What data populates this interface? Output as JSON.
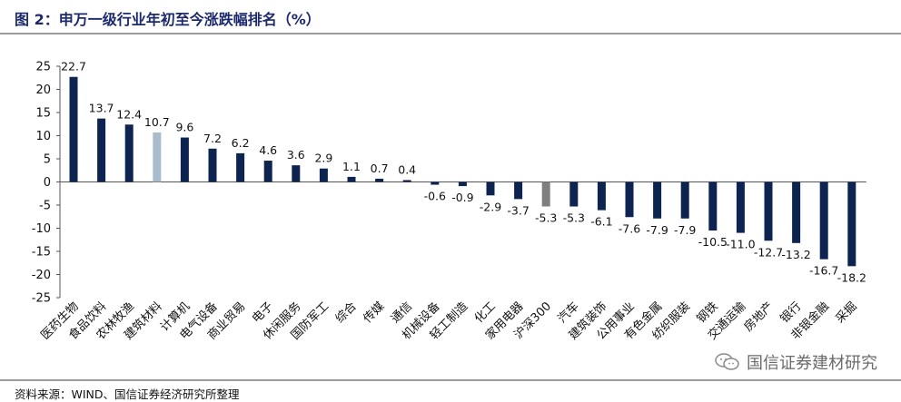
{
  "title": "图 2：申万一级行业年初至今涨跌幅排名（%）",
  "source": "资料来源：WIND、国信证券经济研究所整理",
  "watermark": "国信证券建材研究",
  "colors": {
    "bar": "#0d2451",
    "highlight": "#a8bccd",
    "index": "#7f7f7f",
    "axis": "#555555"
  },
  "chart_data": {
    "type": "bar",
    "title": "图 2：申万一级行业年初至今涨跌幅排名（%）",
    "xlabel": "",
    "ylabel": "",
    "ylim": [
      -25,
      25
    ],
    "yticks": [
      25,
      20,
      15,
      10,
      5,
      0,
      -5,
      -10,
      -15,
      -20,
      -25
    ],
    "grid": false,
    "legend": "none",
    "categories": [
      "医药生物",
      "食品饮料",
      "农林牧渔",
      "建筑材料",
      "计算机",
      "电气设备",
      "商业贸易",
      "电子",
      "休闲服务",
      "国防军工",
      "综合",
      "传媒",
      "通信",
      "机械设备",
      "轻工制造",
      "化工",
      "家用电器",
      "沪深300",
      "汽车",
      "建筑装饰",
      "公用事业",
      "有色金属",
      "纺织服装",
      "钢铁",
      "交通运输",
      "房地产",
      "银行",
      "非银金融",
      "采掘"
    ],
    "values": [
      22.7,
      13.7,
      12.4,
      10.7,
      9.6,
      7.2,
      6.2,
      4.6,
      3.6,
      2.9,
      1.1,
      0.7,
      0.4,
      -0.6,
      -0.9,
      -2.9,
      -3.7,
      -5.3,
      -5.3,
      -6.1,
      -7.6,
      -7.9,
      -7.9,
      -10.5,
      -11.0,
      -12.7,
      -13.2,
      -16.7,
      -18.2
    ],
    "value_labels": [
      "22.7",
      "13.7",
      "12.4",
      "10.7",
      "9.6",
      "7.2",
      "6.2",
      "4.6",
      "3.6",
      "2.9",
      "1.1",
      "0.7",
      "0.4",
      "-0.6",
      "-0.9",
      "-2.9",
      "-3.7",
      "-5.3",
      "-5.3",
      "-6.1",
      "-7.6",
      "-7.9",
      "-7.9",
      "-10.5",
      "-11.0",
      "-12.7",
      "-13.2",
      "-16.7",
      "-18.2"
    ],
    "highlight": {
      "建筑材料": "highlight",
      "沪深300": "index"
    }
  }
}
